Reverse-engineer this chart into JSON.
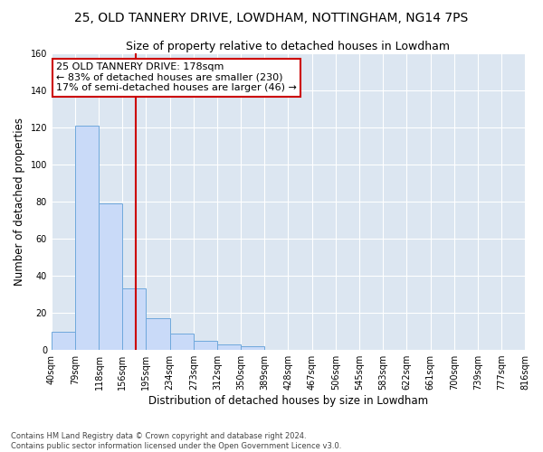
{
  "title": "25, OLD TANNERY DRIVE, LOWDHAM, NOTTINGHAM, NG14 7PS",
  "subtitle": "Size of property relative to detached houses in Lowdham",
  "xlabel": "Distribution of detached houses by size in Lowdham",
  "ylabel": "Number of detached properties",
  "bin_labels": [
    "40sqm",
    "79sqm",
    "118sqm",
    "156sqm",
    "195sqm",
    "234sqm",
    "273sqm",
    "312sqm",
    "350sqm",
    "389sqm",
    "428sqm",
    "467sqm",
    "506sqm",
    "545sqm",
    "583sqm",
    "622sqm",
    "661sqm",
    "700sqm",
    "739sqm",
    "777sqm",
    "816sqm"
  ],
  "bar_heights": [
    10,
    121,
    79,
    33,
    17,
    9,
    5,
    3,
    2,
    0,
    0,
    0,
    0,
    0,
    0,
    0,
    0,
    0,
    0,
    0
  ],
  "bar_color": "#c9daf8",
  "bar_edge_color": "#6fa8dc",
  "vline_x": 178,
  "bin_edges": [
    40,
    79,
    118,
    156,
    195,
    234,
    273,
    312,
    350,
    389,
    428,
    467,
    506,
    545,
    583,
    622,
    661,
    700,
    739,
    777,
    816
  ],
  "vline_color": "#cc0000",
  "annotation_line1": "25 OLD TANNERY DRIVE: 178sqm",
  "annotation_line2": "← 83% of detached houses are smaller (230)",
  "annotation_line3": "17% of semi-detached houses are larger (46) →",
  "annotation_box_color": "#ffffff",
  "annotation_box_edge_color": "#cc0000",
  "ylim": [
    0,
    160
  ],
  "yticks": [
    0,
    20,
    40,
    60,
    80,
    100,
    120,
    140,
    160
  ],
  "background_color": "#dce6f1",
  "grid_color": "#ffffff",
  "footer_text": "Contains HM Land Registry data © Crown copyright and database right 2024.\nContains public sector information licensed under the Open Government Licence v3.0.",
  "title_fontsize": 10,
  "subtitle_fontsize": 9,
  "axis_label_fontsize": 8.5,
  "tick_fontsize": 7,
  "annotation_fontsize": 8
}
